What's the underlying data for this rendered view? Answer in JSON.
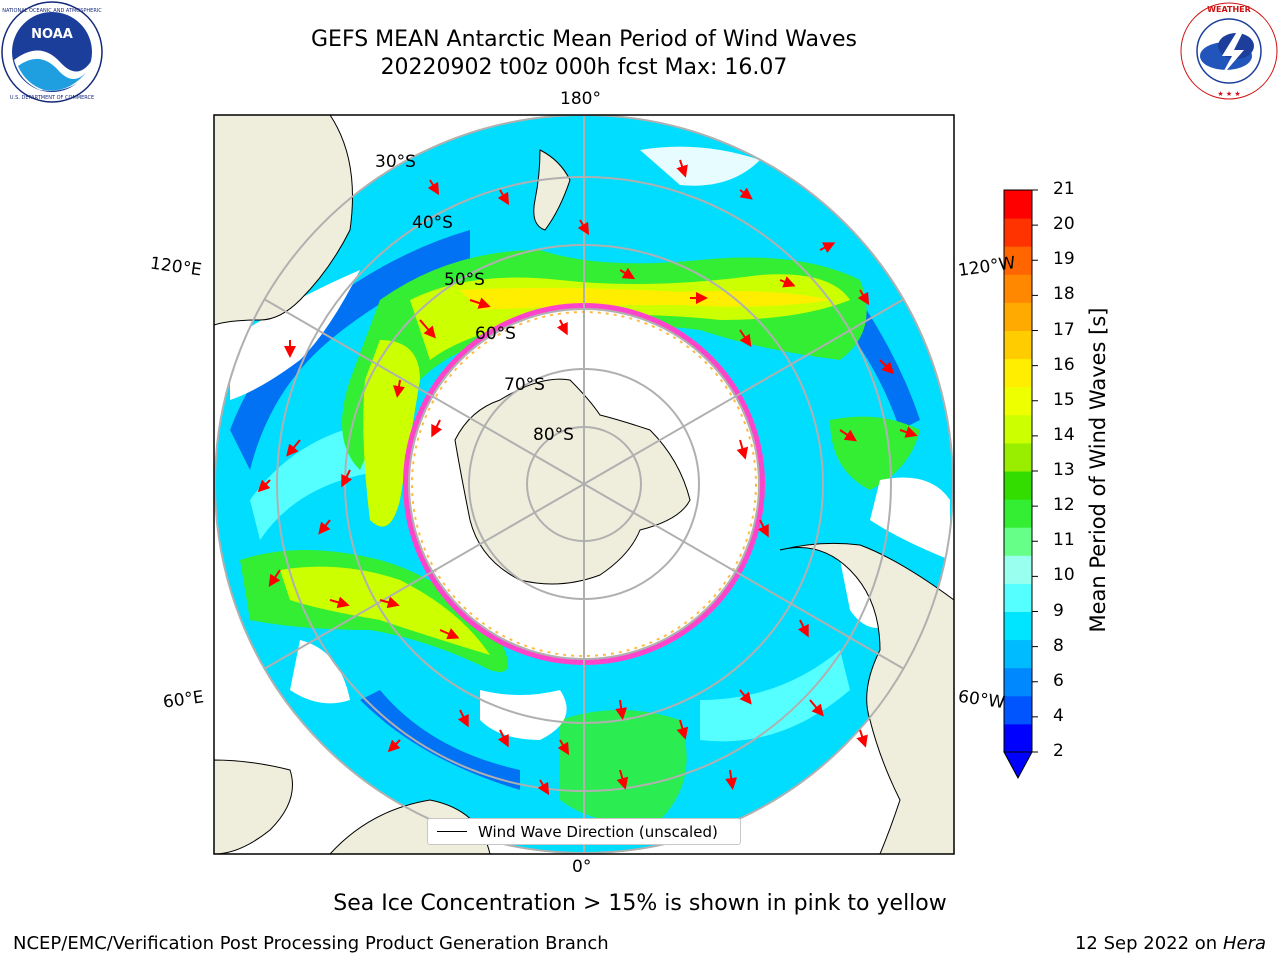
{
  "header": {
    "title_line1": "GEFS MEAN Antarctic Mean Period of Wind Waves",
    "title_line2": "20220902 t00z 000h fcst   Max: 16.07"
  },
  "logos": {
    "left": {
      "name": "noaa-logo",
      "text": "NOAA",
      "ring_text": "NATIONAL OCEANIC AND ATMOSPHERIC ADMINISTRATION · U.S. DEPARTMENT OF COMMERCE"
    },
    "right": {
      "name": "nws-logo",
      "ring_text": "NATIONAL WEATHER SERVICE"
    }
  },
  "map": {
    "projection": "south-polar-stereographic",
    "lon_labels": {
      "top": "180°",
      "bottom": "0°",
      "left_upper": "120°E",
      "left_lower": "60°E",
      "right_upper": "120°W",
      "right_lower": "60°W"
    },
    "lat_labels": [
      "30°S",
      "40°S",
      "50°S",
      "60°S",
      "70°S",
      "80°S"
    ],
    "sea_ice_color": "#ff44cc",
    "land_color": "#efeedc"
  },
  "colorbar": {
    "title": "Mean Period of Wind Waves [s]",
    "ticks": [
      "21",
      "20",
      "19",
      "18",
      "17",
      "16",
      "15",
      "14",
      "13",
      "12",
      "11",
      "10",
      "9",
      "8",
      "6",
      "4",
      "2"
    ],
    "colors": [
      "#0000ff",
      "#0055ff",
      "#0088ff",
      "#00bbff",
      "#00e5ff",
      "#55ffff",
      "#99ffee",
      "#66ff88",
      "#33ee33",
      "#33dd00",
      "#99ee00",
      "#ccff00",
      "#eeff00",
      "#ffee00",
      "#ffcc00",
      "#ffaa00",
      "#ff8800",
      "#ff6600",
      "#ff3300",
      "#ff0000"
    ]
  },
  "legend": {
    "label": "Wind Wave Direction (unscaled)"
  },
  "footer": {
    "note": "Sea Ice Concentration > 15% is shown in pink to yellow",
    "credit": "NCEP/EMC/Verification Post Processing Product Generation Branch",
    "date": "12 Sep 2022 on",
    "host": "Hera"
  }
}
